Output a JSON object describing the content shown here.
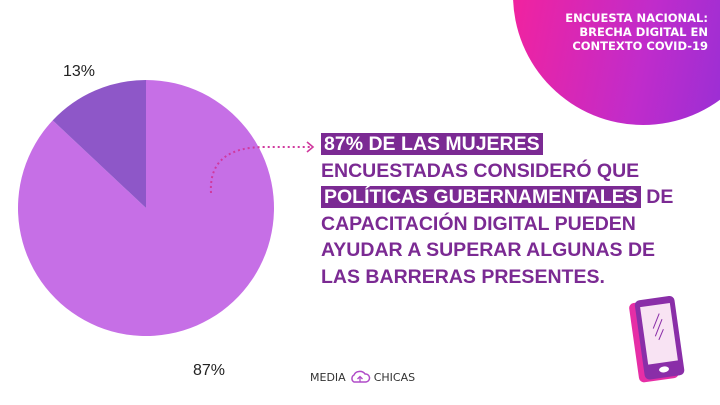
{
  "header": {
    "title_lines": [
      "ENCUESTA NACIONAL:",
      "BRECHA DIGITAL EN",
      "CONTEXTO COVID-19"
    ]
  },
  "chart_data": {
    "type": "pie",
    "slices": [
      {
        "label": "87%",
        "value": 87,
        "color": "#c66fe6"
      },
      {
        "label": "13%",
        "value": 13,
        "color": "#8e57c8"
      }
    ]
  },
  "message": {
    "line1": "87% DE LAS MUJERES",
    "line2": "ENCUESTADAS CONSIDERÓ QUE",
    "line3a": "POLÍTICAS GUBERNAMENTALES",
    "line3b": " DE",
    "line4": "CAPACITACIÓN DIGITAL PUEDEN",
    "line5": "AYUDAR A SUPERAR ALGUNAS DE",
    "line6": "LAS BARRERAS PRESENTES."
  },
  "logo": {
    "left": "MEDIA",
    "right": "CHICAS"
  },
  "colors": {
    "accent": "#7b2a93",
    "pink": "#f3229d"
  }
}
